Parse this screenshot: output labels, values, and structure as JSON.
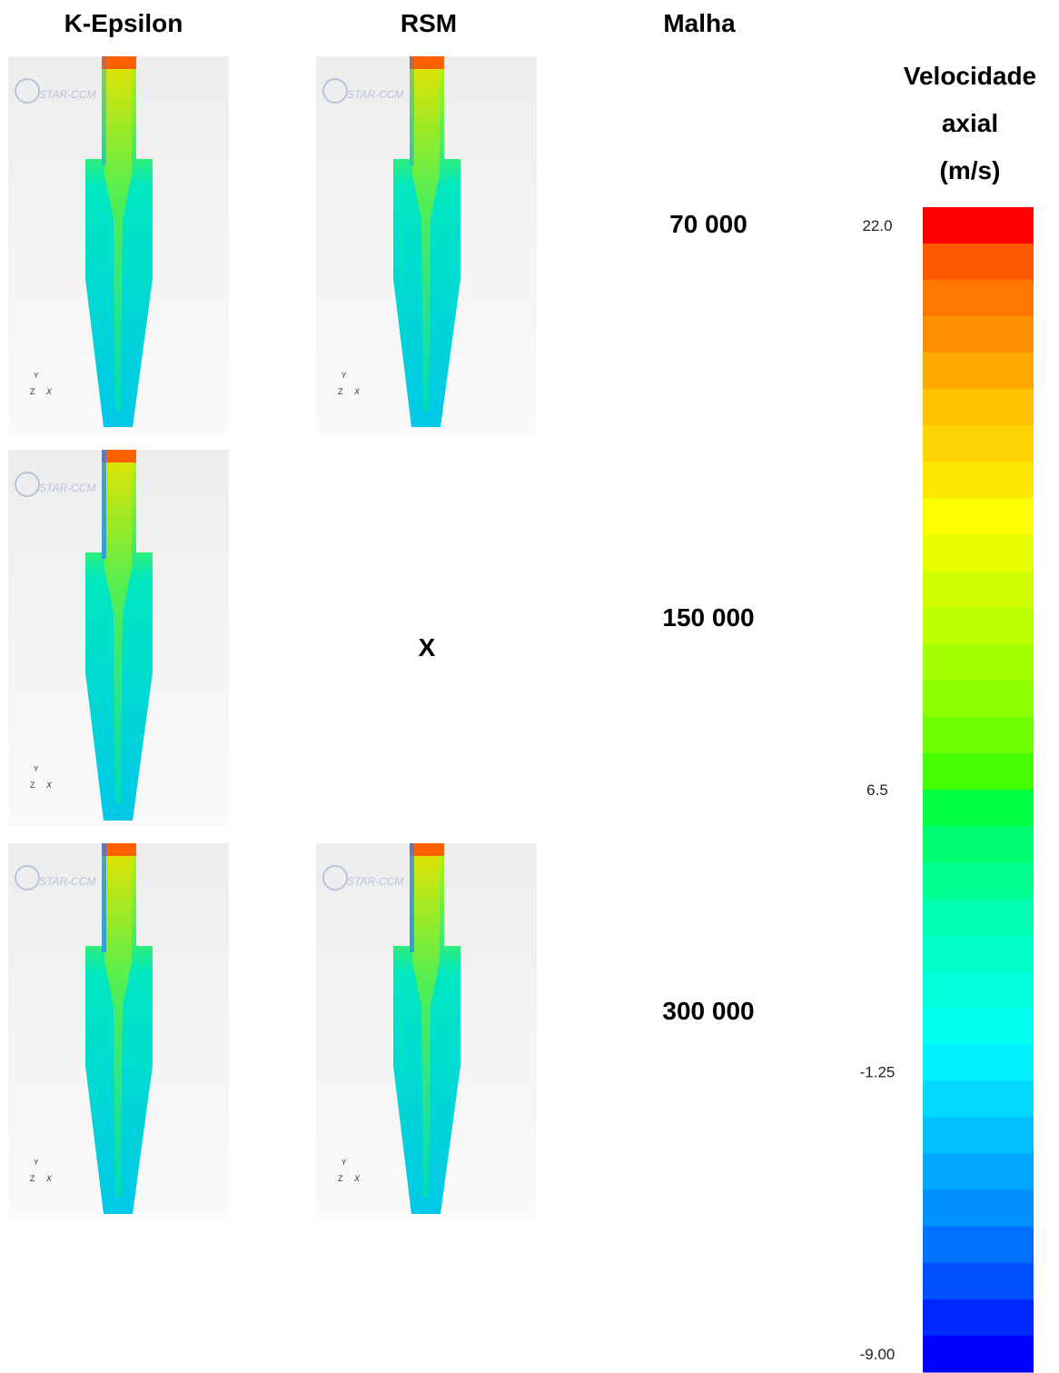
{
  "header": {
    "columns": [
      "K-Epsilon",
      "RSM",
      "Malha"
    ]
  },
  "rows": [
    {
      "mesh": "70 000"
    },
    {
      "mesh": "150 000",
      "missing": "X"
    },
    {
      "mesh": "300 000"
    }
  ],
  "watermark": "STAR-CCM",
  "triad": {
    "y": "Y",
    "z": "Z",
    "x": "X"
  },
  "colorbar": {
    "title": [
      "Velocidade",
      "axial",
      "(m/s)"
    ],
    "ticks": [
      {
        "value": 22,
        "label": "22.0"
      },
      6.5,
      -1.25,
      {
        "value": -9,
        "label": "-9.00"
      }
    ],
    "colors": [
      "#ff0000",
      "#ff5a00",
      "#ff7800",
      "#ff9000",
      "#ffa800",
      "#ffc000",
      "#ffd400",
      "#ffe800",
      "#ffff00",
      "#e8ff00",
      "#d2ff00",
      "#bcff00",
      "#a6ff00",
      "#8cff00",
      "#6eff00",
      "#46ff00",
      "#00ff40",
      "#00ff70",
      "#00ff90",
      "#00ffb0",
      "#00ffc8",
      "#00ffdc",
      "#00fff0",
      "#00f0ff",
      "#00d8ff",
      "#00c0ff",
      "#00a8ff",
      "#0090ff",
      "#0070ff",
      "#0050ff",
      "#0028ff",
      "#0000ff"
    ]
  }
}
